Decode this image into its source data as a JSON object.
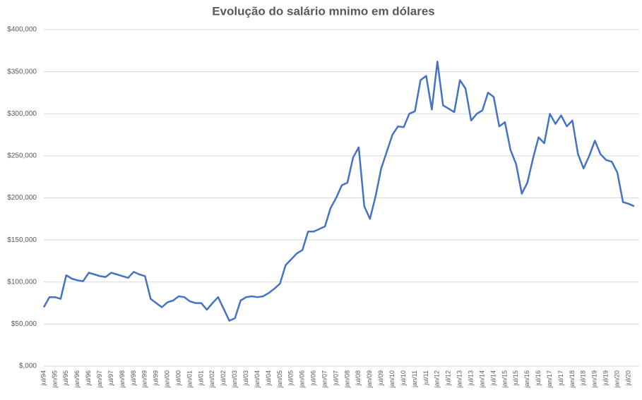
{
  "chart_data": {
    "type": "line",
    "title": "Evolução do salário mnimo em dólares",
    "categories": [
      "jul/94",
      null,
      "jan/95",
      null,
      "jul/95",
      null,
      "jan/96",
      null,
      "jul/96",
      null,
      "jan/97",
      null,
      "jul/97",
      null,
      "jan/98",
      null,
      "jul/98",
      null,
      "jan/99",
      null,
      "jul/99",
      null,
      "jan/00",
      null,
      "jul/00",
      null,
      "jan/01",
      null,
      "jul/01",
      null,
      "jan/02",
      null,
      "jul/02",
      null,
      "jan/03",
      null,
      "jul/03",
      null,
      "jan/04",
      null,
      "jul/04",
      null,
      "jan/05",
      null,
      "jul/05",
      null,
      "jan/06",
      null,
      "jul/06",
      null,
      "jan/07",
      null,
      "jul/07",
      null,
      "jan/08",
      null,
      "jul/08",
      null,
      "jan/09",
      null,
      "jul/09",
      null,
      "jan/10",
      null,
      "jul/10",
      null,
      "jan/11",
      null,
      "jul/11",
      null,
      "jan/12",
      null,
      "jul/12",
      null,
      "jan/13",
      null,
      "jul/13",
      null,
      "jan/14",
      null,
      "jul/14",
      null,
      "jan/15",
      null,
      "jul/15",
      null,
      "jan/16",
      null,
      "jul/16",
      null,
      "jan/17",
      null,
      "jul/17",
      null,
      "jan/18",
      null,
      "jul/18",
      null,
      "jan/19",
      null,
      "jul/19",
      null,
      "jan/20",
      null,
      "jul/20",
      null
    ],
    "values": [
      70000,
      82000,
      82000,
      80000,
      108000,
      104000,
      102000,
      101000,
      111000,
      109000,
      107000,
      106000,
      111000,
      109000,
      107000,
      105000,
      112000,
      109000,
      107000,
      80000,
      75000,
      70000,
      76000,
      78000,
      83000,
      82000,
      77000,
      75000,
      75000,
      67000,
      75000,
      82000,
      68000,
      54000,
      57000,
      78000,
      82000,
      83000,
      82000,
      83000,
      87000,
      92000,
      98000,
      120000,
      127000,
      134000,
      138000,
      160000,
      160000,
      163000,
      166000,
      188000,
      200000,
      215000,
      218000,
      248000,
      260000,
      190000,
      175000,
      202000,
      235000,
      255000,
      275000,
      285000,
      284000,
      300000,
      303000,
      340000,
      345000,
      305000,
      362000,
      310000,
      306000,
      302000,
      340000,
      330000,
      292000,
      300000,
      304000,
      325000,
      320000,
      285000,
      290000,
      257000,
      240000,
      205000,
      218000,
      247000,
      272000,
      265000,
      300000,
      288000,
      298000,
      285000,
      292000,
      252000,
      235000,
      250000,
      268000,
      252000,
      245000,
      243000,
      230000,
      195000,
      193000,
      190000
    ],
    "color": "#4472c4",
    "ylim": [
      0,
      400000
    ],
    "yticks": [
      {
        "value": 0,
        "label": "$,000"
      },
      {
        "value": 50000,
        "label": "$50,000"
      },
      {
        "value": 100000,
        "label": "$100,000"
      },
      {
        "value": 150000,
        "label": "$150,000"
      },
      {
        "value": 200000,
        "label": "$200,000"
      },
      {
        "value": 250000,
        "label": "$250,000"
      },
      {
        "value": 300000,
        "label": "$300,000"
      },
      {
        "value": 350000,
        "label": "$350,000"
      },
      {
        "value": 400000,
        "label": "$400,000"
      }
    ],
    "grid": true
  }
}
